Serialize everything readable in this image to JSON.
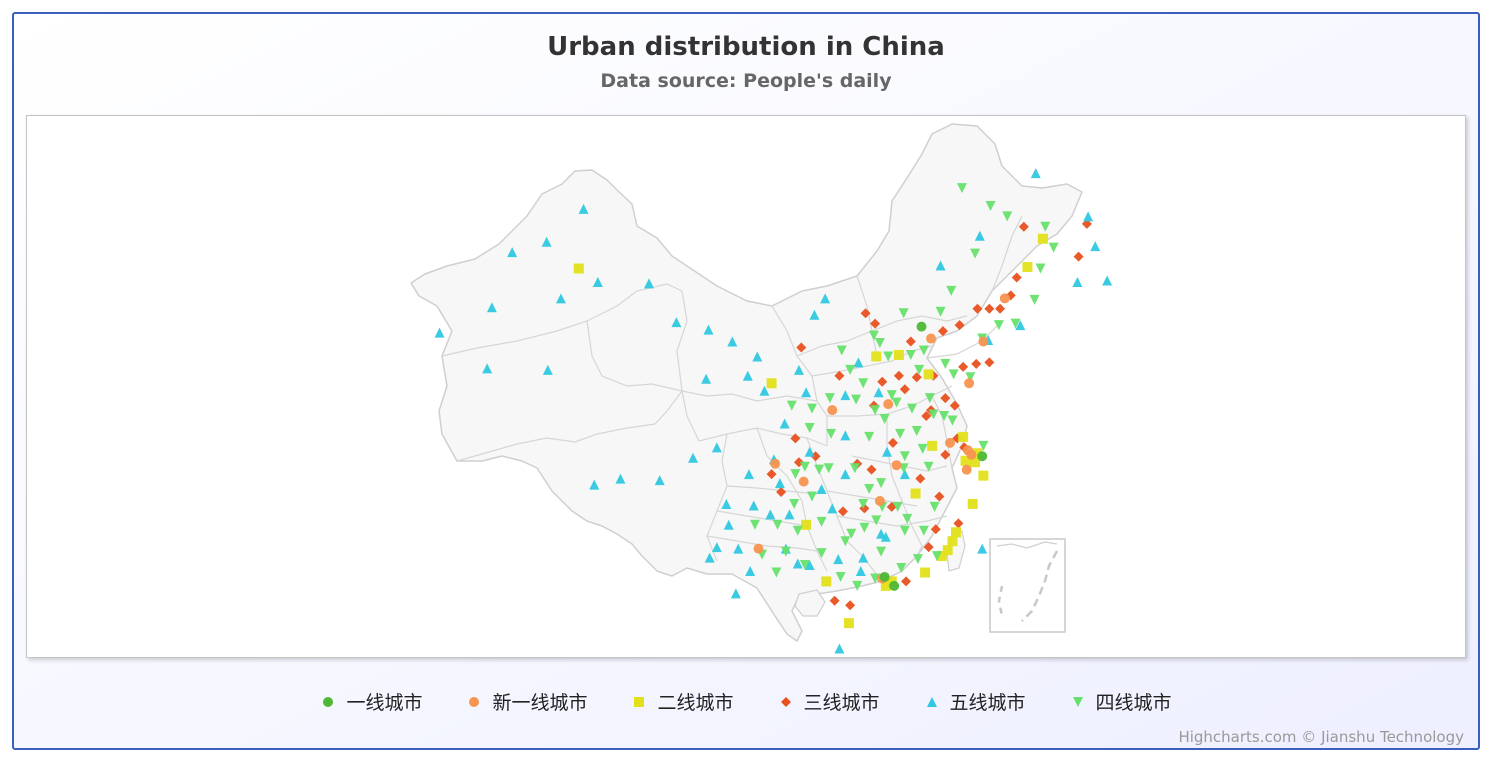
{
  "chart_data": {
    "type": "scatter",
    "title": "Urban distribution in China",
    "subtitle": "Data source: People's daily",
    "credits": "Highcharts.com © Jianshu Technology",
    "legend_placement": "bottom-center",
    "series": [
      {
        "name": "一线城市",
        "marker": "circle",
        "color": "#4cb836",
        "points": [
          [
            116.4,
            39.9
          ],
          [
            121.5,
            31.2
          ],
          [
            113.3,
            23.1
          ],
          [
            114.1,
            22.5
          ]
        ]
      },
      {
        "name": "新一线城市",
        "marker": "circle",
        "color": "#f7944f",
        "points": [
          [
            104.1,
            30.7
          ],
          [
            106.5,
            29.5
          ],
          [
            120.2,
            30.3
          ],
          [
            118.8,
            32.1
          ],
          [
            114.3,
            30.6
          ],
          [
            108.9,
            34.3
          ],
          [
            113.6,
            34.7
          ],
          [
            117.2,
            39.1
          ],
          [
            120.6,
            31.3
          ],
          [
            112.9,
            28.2
          ],
          [
            121.6,
            38.9
          ],
          [
            120.4,
            36.1
          ],
          [
            123.4,
            41.8
          ],
          [
            113.1,
            23.0
          ],
          [
            120.3,
            31.6
          ],
          [
            102.7,
            25.0
          ]
        ]
      },
      {
        "name": "二线城市",
        "marker": "square",
        "color": "#e2e01a",
        "points": [
          [
            87.6,
            43.8
          ],
          [
            126.6,
            45.8
          ],
          [
            125.3,
            43.9
          ],
          [
            103.8,
            36.1
          ],
          [
            114.5,
            38.0
          ],
          [
            112.6,
            37.9
          ],
          [
            117.0,
            36.7
          ],
          [
            121.6,
            29.9
          ],
          [
            120.7,
            28.0
          ],
          [
            119.0,
            25.5
          ],
          [
            118.1,
            24.5
          ],
          [
            113.9,
            22.8
          ],
          [
            110.3,
            20.0
          ],
          [
            115.9,
            28.7
          ],
          [
            106.7,
            26.6
          ],
          [
            108.4,
            22.8
          ],
          [
            117.3,
            31.9
          ],
          [
            119.3,
            26.1
          ],
          [
            113.4,
            22.5
          ],
          [
            120.9,
            30.8
          ],
          [
            121.1,
            31.4
          ],
          [
            116.7,
            23.4
          ],
          [
            119.9,
            32.5
          ],
          [
            120.1,
            30.9
          ],
          [
            118.6,
            24.9
          ]
        ]
      },
      {
        "name": "三线城市",
        "marker": "diamond",
        "color": "#e8501e",
        "points": [
          [
            112.5,
            40.1
          ],
          [
            113.1,
            36.2
          ],
          [
            115.0,
            35.7
          ],
          [
            117.4,
            36.6
          ],
          [
            118.4,
            35.1
          ],
          [
            114.0,
            32.1
          ],
          [
            112.4,
            34.6
          ],
          [
            111.0,
            30.7
          ],
          [
            112.2,
            30.3
          ],
          [
            113.9,
            27.8
          ],
          [
            111.6,
            27.7
          ],
          [
            109.8,
            27.5
          ],
          [
            116.3,
            29.7
          ],
          [
            117.9,
            28.5
          ],
          [
            118.4,
            31.3
          ],
          [
            116.8,
            33.9
          ],
          [
            117.2,
            34.3
          ],
          [
            119.2,
            34.6
          ],
          [
            120.0,
            31.8
          ],
          [
            119.4,
            32.4
          ],
          [
            121.0,
            37.4
          ],
          [
            122.1,
            37.5
          ],
          [
            119.9,
            37.2
          ],
          [
            114.5,
            36.6
          ],
          [
            115.5,
            38.9
          ],
          [
            118.2,
            39.6
          ],
          [
            119.6,
            40.0
          ],
          [
            121.1,
            41.1
          ],
          [
            122.1,
            41.1
          ],
          [
            123.9,
            42.0
          ],
          [
            124.4,
            43.2
          ],
          [
            129.6,
            44.6
          ],
          [
            130.3,
            46.8
          ],
          [
            117.6,
            26.3
          ],
          [
            119.5,
            26.7
          ],
          [
            117.0,
            25.1
          ],
          [
            115.1,
            22.8
          ],
          [
            110.4,
            21.2
          ],
          [
            109.1,
            21.5
          ],
          [
            104.6,
            28.8
          ],
          [
            103.8,
            30.0
          ],
          [
            105.8,
            32.4
          ],
          [
            106.1,
            30.8
          ],
          [
            107.5,
            31.2
          ],
          [
            109.5,
            36.6
          ],
          [
            106.3,
            38.5
          ],
          [
            111.7,
            40.8
          ],
          [
            125.0,
            46.6
          ],
          [
            123.0,
            41.1
          ],
          [
            116.0,
            36.5
          ]
        ]
      },
      {
        "name": "五线城市",
        "marker": "triangle",
        "color": "#2fc8e2",
        "points": [
          [
            75.9,
            39.5
          ],
          [
            79.9,
            37.1
          ],
          [
            80.3,
            41.2
          ],
          [
            82.0,
            44.9
          ],
          [
            84.9,
            45.6
          ],
          [
            86.1,
            41.8
          ],
          [
            89.2,
            42.9
          ],
          [
            93.5,
            42.8
          ],
          [
            95.8,
            40.2
          ],
          [
            91.1,
            29.7
          ],
          [
            88.9,
            29.3
          ],
          [
            94.4,
            29.6
          ],
          [
            97.2,
            31.1
          ],
          [
            101.8,
            36.6
          ],
          [
            98.3,
            36.4
          ],
          [
            100.5,
            38.9
          ],
          [
            102.6,
            37.9
          ],
          [
            98.5,
            39.7
          ],
          [
            103.2,
            35.6
          ],
          [
            104.9,
            33.4
          ],
          [
            106.7,
            35.5
          ],
          [
            99.2,
            31.8
          ],
          [
            101.9,
            30.0
          ],
          [
            102.3,
            27.9
          ],
          [
            100.2,
            26.6
          ],
          [
            99.2,
            25.1
          ],
          [
            100.8,
            22.0
          ],
          [
            98.6,
            24.4
          ],
          [
            103.7,
            27.3
          ],
          [
            105.3,
            27.3
          ],
          [
            108.9,
            27.7
          ],
          [
            107.0,
            23.9
          ],
          [
            109.4,
            24.3
          ],
          [
            111.5,
            24.4
          ],
          [
            113.4,
            25.8
          ],
          [
            111.3,
            23.5
          ],
          [
            109.5,
            18.3
          ],
          [
            121.5,
            25.0
          ],
          [
            129.5,
            42.9
          ],
          [
            131.0,
            45.3
          ],
          [
            132.0,
            43.0
          ],
          [
            124.7,
            40.0
          ],
          [
            121.3,
            46.0
          ],
          [
            110.0,
            32.6
          ],
          [
            102.0,
            23.5
          ],
          [
            122.0,
            39.0
          ],
          [
            107.4,
            40.7
          ],
          [
            111.1,
            37.5
          ],
          [
            110.0,
            35.3
          ],
          [
            112.8,
            35.5
          ],
          [
            88.0,
            47.8
          ],
          [
            108.3,
            41.8
          ],
          [
            130.4,
            47.3
          ],
          [
            126.0,
            50.2
          ],
          [
            118.0,
            44.0
          ],
          [
            85.0,
            37.0
          ],
          [
            107.0,
            31.5
          ],
          [
            104.0,
            31.0
          ],
          [
            108.0,
            29.0
          ],
          [
            113.0,
            26.0
          ],
          [
            106.0,
            24.0
          ],
          [
            100.0,
            28.0
          ],
          [
            105.0,
            25.0
          ],
          [
            110.0,
            30.0
          ],
          [
            104.5,
            29.4
          ],
          [
            106.1,
            37.0
          ],
          [
            101.0,
            25.0
          ],
          [
            113.5,
            31.5
          ],
          [
            115.0,
            30.0
          ]
        ]
      },
      {
        "name": "四线城市",
        "marker": "triangle-down",
        "color": "#66e06c",
        "points": [
          [
            113.6,
            37.9
          ],
          [
            112.4,
            39.3
          ],
          [
            111.5,
            36.1
          ],
          [
            110.9,
            35.0
          ],
          [
            113.9,
            35.3
          ],
          [
            114.3,
            34.8
          ],
          [
            115.6,
            34.4
          ],
          [
            116.0,
            32.9
          ],
          [
            117.4,
            34.0
          ],
          [
            118.3,
            33.9
          ],
          [
            119.0,
            33.6
          ],
          [
            117.0,
            30.5
          ],
          [
            116.5,
            31.7
          ],
          [
            115.0,
            31.2
          ],
          [
            114.9,
            30.4
          ],
          [
            113.0,
            29.4
          ],
          [
            112.0,
            29.0
          ],
          [
            111.5,
            28.0
          ],
          [
            110.5,
            26.0
          ],
          [
            112.6,
            26.9
          ],
          [
            113.1,
            27.8
          ],
          [
            114.4,
            27.8
          ],
          [
            115.2,
            27.0
          ],
          [
            116.6,
            26.2
          ],
          [
            117.7,
            24.5
          ],
          [
            116.1,
            24.3
          ],
          [
            114.7,
            23.7
          ],
          [
            112.5,
            23.0
          ],
          [
            111.0,
            22.5
          ],
          [
            109.6,
            23.1
          ],
          [
            108.0,
            24.7
          ],
          [
            106.6,
            23.9
          ],
          [
            105.0,
            24.8
          ],
          [
            103.0,
            24.6
          ],
          [
            104.3,
            26.6
          ],
          [
            105.7,
            28.0
          ],
          [
            106.6,
            30.5
          ],
          [
            107.8,
            30.3
          ],
          [
            108.8,
            32.7
          ],
          [
            107.0,
            33.1
          ],
          [
            105.5,
            34.6
          ],
          [
            107.2,
            34.4
          ],
          [
            108.7,
            35.1
          ],
          [
            110.4,
            37.0
          ],
          [
            109.7,
            38.3
          ],
          [
            112.9,
            38.8
          ],
          [
            114.9,
            40.8
          ],
          [
            115.5,
            38.0
          ],
          [
            116.6,
            38.3
          ],
          [
            117.1,
            35.1
          ],
          [
            118.4,
            37.4
          ],
          [
            119.1,
            36.7
          ],
          [
            120.5,
            36.5
          ],
          [
            121.5,
            39.1
          ],
          [
            122.9,
            40.0
          ],
          [
            124.3,
            40.1
          ],
          [
            125.9,
            41.7
          ],
          [
            126.4,
            43.8
          ],
          [
            127.5,
            45.2
          ],
          [
            126.8,
            46.6
          ],
          [
            123.6,
            47.3
          ],
          [
            122.2,
            48.0
          ],
          [
            119.8,
            49.2
          ],
          [
            120.9,
            44.8
          ],
          [
            118.9,
            42.3
          ],
          [
            115.0,
            26.2
          ],
          [
            113.0,
            24.8
          ],
          [
            117.5,
            27.8
          ],
          [
            112.0,
            32.5
          ],
          [
            118.0,
            40.9
          ],
          [
            121.6,
            31.9
          ],
          [
            110.0,
            25.5
          ],
          [
            108.0,
            26.8
          ],
          [
            111.6,
            26.4
          ],
          [
            113.3,
            33.7
          ],
          [
            114.6,
            32.7
          ],
          [
            112.5,
            34.3
          ],
          [
            116.2,
            37.0
          ],
          [
            104.2,
            23.4
          ],
          [
            108.6,
            30.4
          ],
          [
            105.8,
            30.0
          ],
          [
            106.0,
            26.2
          ],
          [
            102.4,
            26.6
          ],
          [
            107.2,
            28.5
          ],
          [
            110.8,
            30.4
          ]
        ]
      }
    ]
  }
}
